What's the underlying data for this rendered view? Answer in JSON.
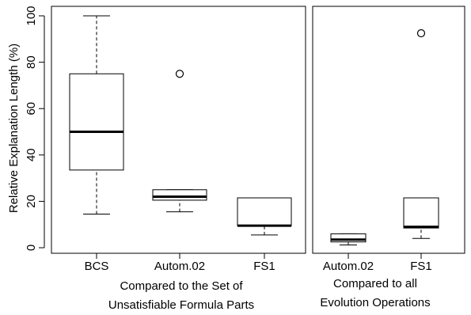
{
  "chart_data": {
    "type": "boxplot",
    "ylabel": "Relative Explanation Length (%)",
    "ylim": [
      0,
      100
    ],
    "yticks": [
      0,
      20,
      40,
      60,
      80,
      100
    ],
    "panels": [
      {
        "xlabel_lines": [
          "Compared to the Set of",
          "Unsatisfiable Formula Parts"
        ],
        "categories": [
          "BCS",
          "Autom.02",
          "FS1"
        ],
        "boxes": [
          {
            "min": 14.5,
            "q1": 33.5,
            "median": 50,
            "q3": 75,
            "max": 100,
            "outliers": []
          },
          {
            "min": 15.5,
            "q1": 20.5,
            "median": 22,
            "q3": 25,
            "max": 25,
            "outliers": [
              75
            ]
          },
          {
            "min": 5.5,
            "q1": 9.5,
            "median": 9.5,
            "q3": 21.5,
            "max": 21.5,
            "outliers": []
          }
        ]
      },
      {
        "xlabel_lines": [
          "Compared to all",
          "Evolution Operations"
        ],
        "categories": [
          "Autom.02",
          "FS1"
        ],
        "boxes": [
          {
            "min": 1.2,
            "q1": 2.5,
            "median": 3.5,
            "q3": 6,
            "max": 6,
            "outliers": []
          },
          {
            "min": 4,
            "q1": 8.5,
            "median": 9,
            "q3": 21.5,
            "max": 21.5,
            "outliers": [
              92.5
            ]
          }
        ]
      }
    ]
  }
}
